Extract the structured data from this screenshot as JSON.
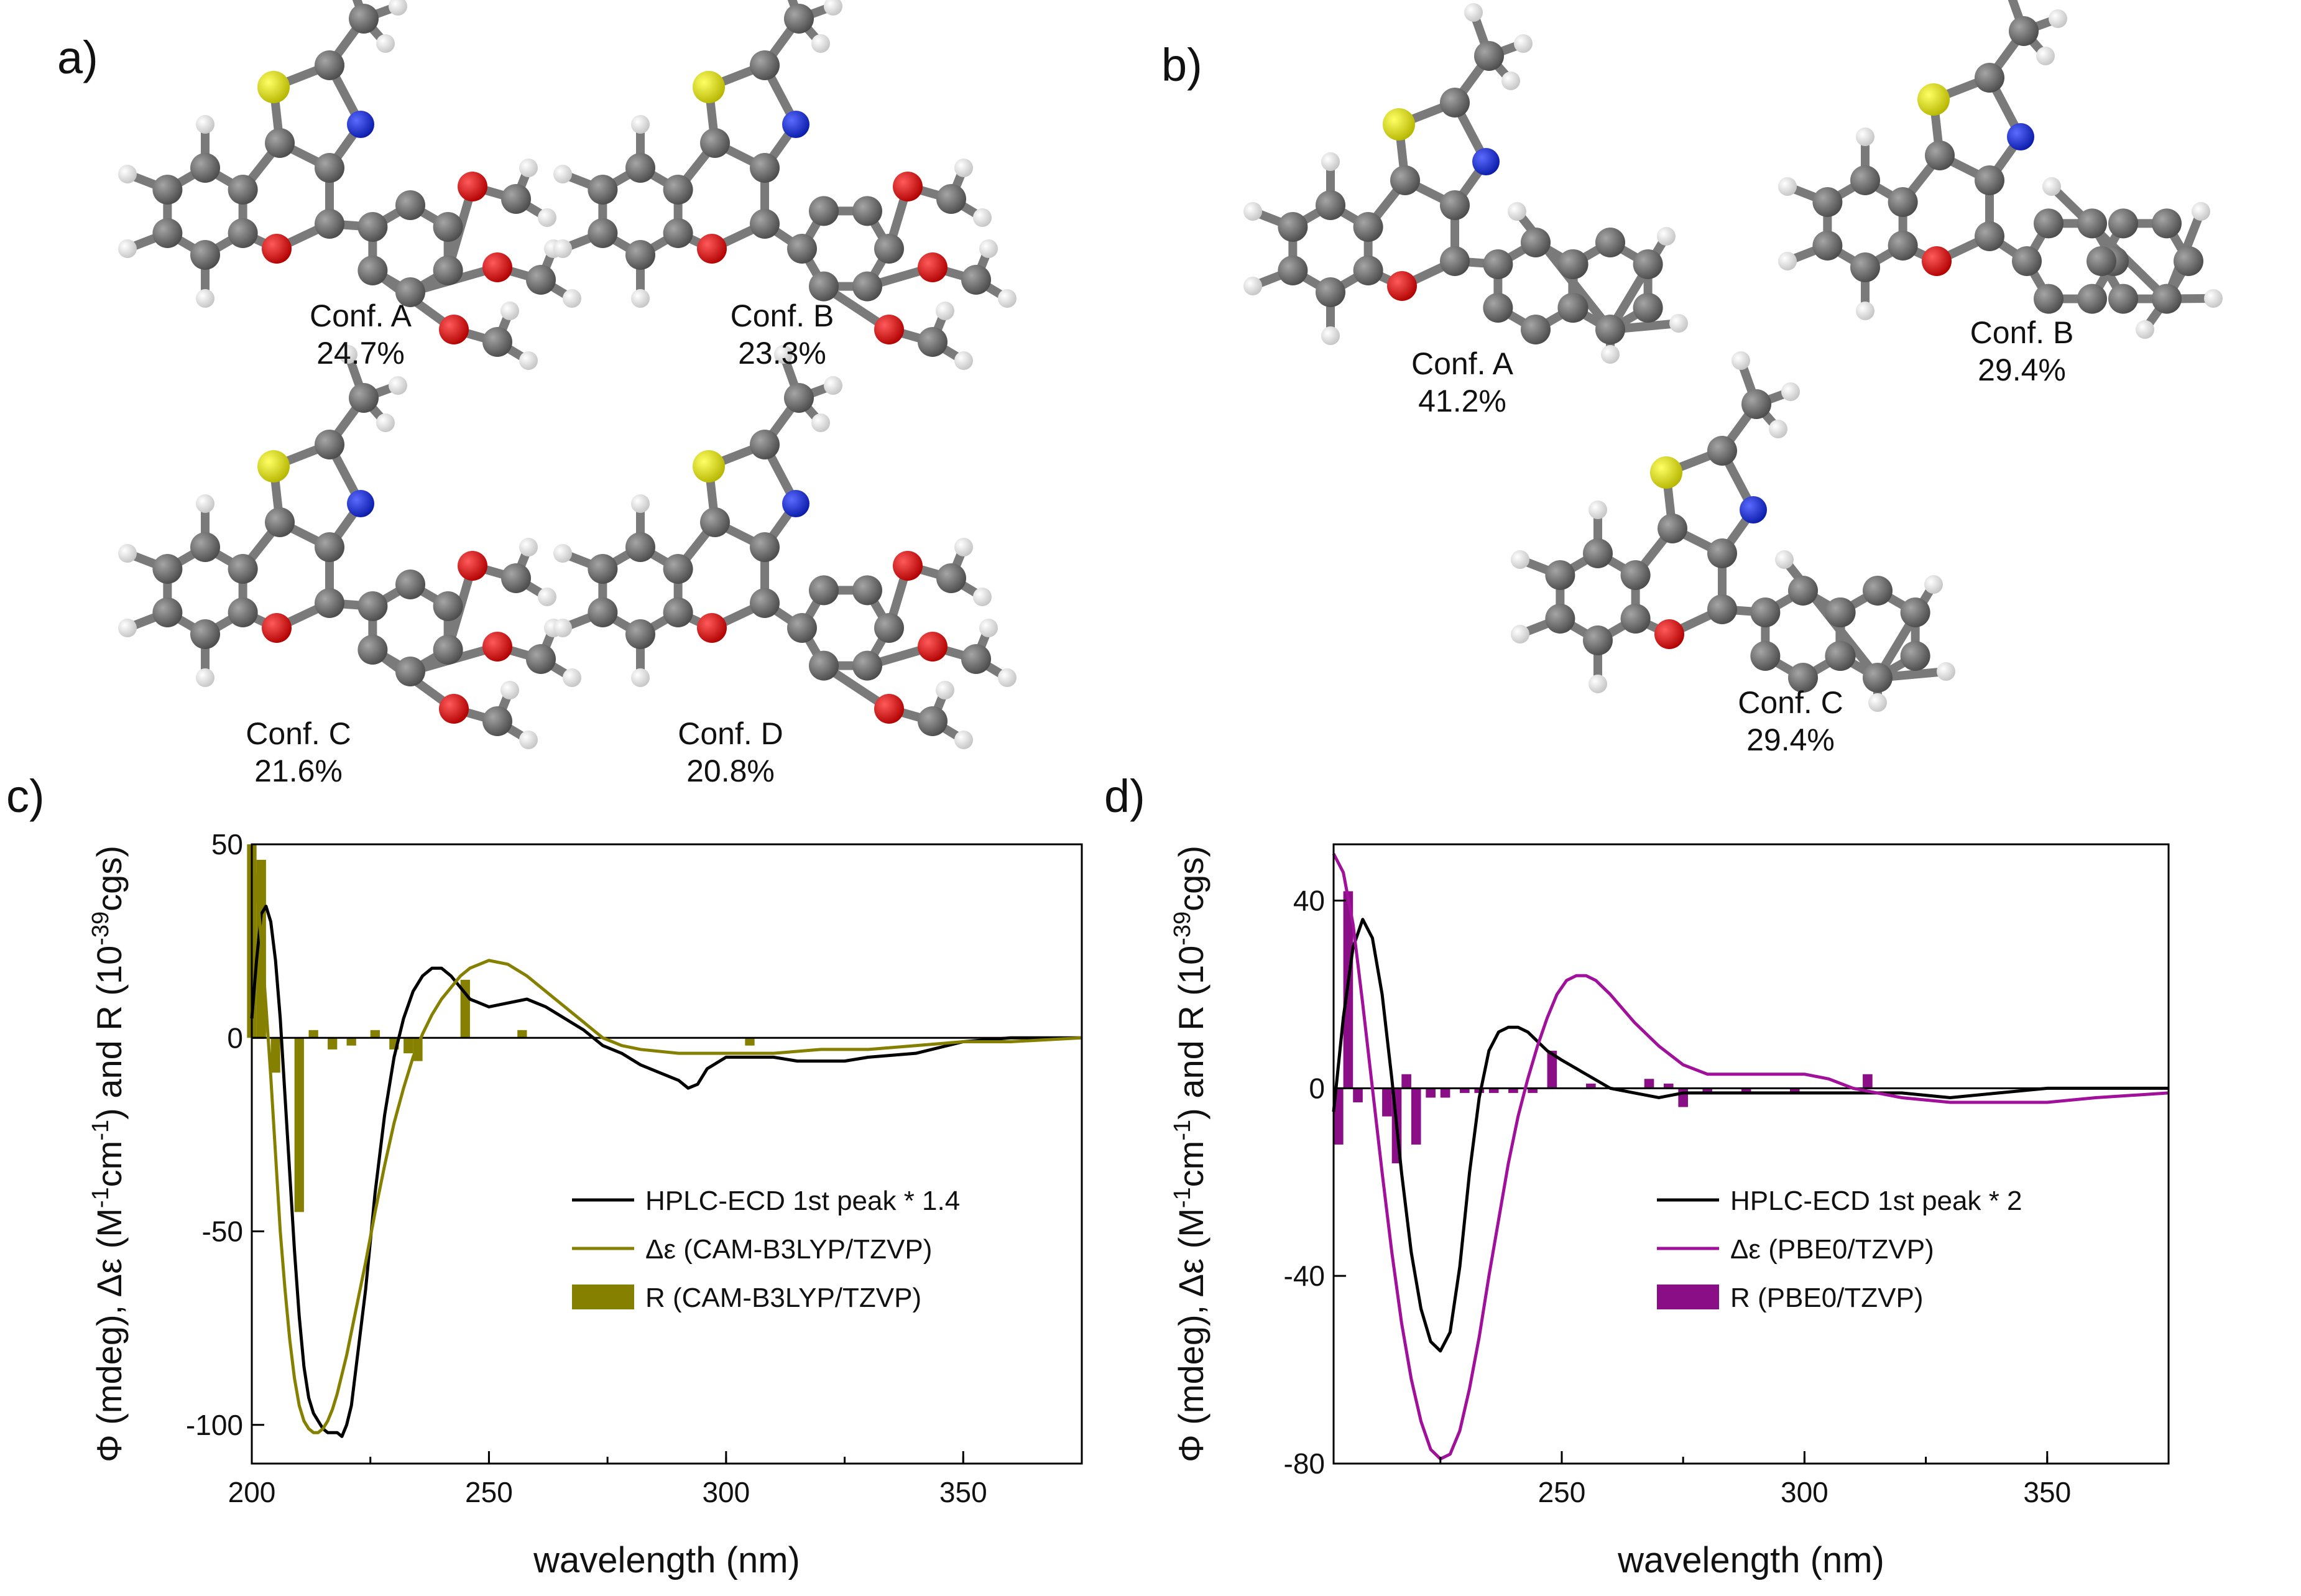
{
  "panels": {
    "a": "a)",
    "b": "b)",
    "c": "c)",
    "d": "d)"
  },
  "conformers_a": [
    {
      "name": "Conf. A",
      "pct": "24.7%"
    },
    {
      "name": "Conf. B",
      "pct": "23.3%"
    },
    {
      "name": "Conf. C",
      "pct": "21.6%"
    },
    {
      "name": "Conf. D",
      "pct": "20.8%"
    }
  ],
  "conformers_b": [
    {
      "name": "Conf. A",
      "pct": "41.2%"
    },
    {
      "name": "Conf. B",
      "pct": "29.4%"
    },
    {
      "name": "Conf. C",
      "pct": "29.4%"
    }
  ],
  "colors": {
    "carbon": "#5e5e5e",
    "hydrogen": "#eeeeee",
    "sulfur": "#d6d600",
    "nitrogen": "#1c2cd6",
    "oxygen": "#e01010",
    "olive": "#858000",
    "magenta": "#a0109a",
    "purple": "#8a0f87",
    "black": "#000000"
  },
  "chart_data": [
    {
      "id": "c",
      "type": "line",
      "xlabel": "wavelength (nm)",
      "ylabel_parts": [
        "Φ (mdeg), Δε (M",
        "-1",
        "cm",
        "-1",
        ") and R (10",
        "-39",
        "cgs)"
      ],
      "xlim": [
        200,
        375
      ],
      "ylim": [
        -110,
        50
      ],
      "xticks": [
        200,
        250,
        300,
        350
      ],
      "yticks": [
        50,
        0,
        -50,
        -100
      ],
      "legend": [
        "HPLC-ECD 1st peak * 1.4",
        "Δε (CAM-B3LYP/TZVP)",
        "R (CAM-B3LYP/TZVP)"
      ],
      "series": [
        {
          "name": "HPLC-ECD 1st peak * 1.4",
          "color": "#000000",
          "x": [
            200,
            201,
            202,
            203,
            204,
            205,
            206,
            207,
            208,
            209,
            210,
            211,
            212,
            213,
            214,
            215,
            216,
            217,
            218,
            219,
            220,
            221,
            222,
            224,
            226,
            228,
            230,
            232,
            234,
            236,
            238,
            240,
            242,
            244,
            246,
            248,
            250,
            254,
            258,
            262,
            266,
            270,
            274,
            278,
            282,
            286,
            290,
            292,
            294,
            296,
            300,
            305,
            310,
            315,
            320,
            325,
            330,
            340,
            350,
            360,
            375
          ],
          "y": [
            5,
            20,
            32,
            34,
            30,
            20,
            5,
            -15,
            -35,
            -55,
            -72,
            -85,
            -93,
            -97,
            -99,
            -101,
            -102,
            -102,
            -102,
            -103,
            -100,
            -95,
            -85,
            -65,
            -40,
            -20,
            -5,
            5,
            12,
            16,
            18,
            18,
            16,
            13,
            10,
            9,
            8,
            9,
            10,
            8,
            5,
            2,
            -2,
            -4,
            -7,
            -9,
            -11,
            -13,
            -12,
            -8,
            -5,
            -5,
            -5,
            -6,
            -6,
            -6,
            -5,
            -4,
            -1,
            0,
            0
          ]
        },
        {
          "name": "Δε (CAM-B3LYP/TZVP)",
          "color": "#858000",
          "x": [
            200,
            201,
            202,
            203,
            204,
            205,
            206,
            207,
            208,
            209,
            210,
            211,
            212,
            213,
            214,
            215,
            216,
            217,
            218,
            219,
            220,
            222,
            224,
            226,
            228,
            230,
            232,
            234,
            236,
            238,
            240,
            242,
            244,
            246,
            248,
            250,
            254,
            258,
            262,
            266,
            270,
            274,
            278,
            282,
            290,
            300,
            310,
            320,
            330,
            340,
            350,
            360,
            375
          ],
          "y": [
            48,
            40,
            25,
            8,
            -10,
            -30,
            -50,
            -65,
            -78,
            -88,
            -95,
            -99,
            -101,
            -102,
            -102,
            -101,
            -99,
            -96,
            -92,
            -87,
            -82,
            -70,
            -58,
            -45,
            -33,
            -22,
            -13,
            -5,
            1,
            6,
            10,
            13,
            16,
            18,
            19,
            20,
            19,
            16,
            12,
            8,
            4,
            0,
            -2,
            -3,
            -4,
            -4,
            -4,
            -3,
            -3,
            -2,
            -1,
            -1,
            0
          ]
        }
      ],
      "bars": {
        "name": "R (CAM-B3LYP/TZVP)",
        "color": "#858000",
        "x": [
          200,
          202,
          205,
          210,
          213,
          217,
          221,
          226,
          230,
          233,
          235,
          245,
          257,
          305
        ],
        "y": [
          50,
          46,
          -9,
          -45,
          2,
          -3,
          -2,
          2,
          -3,
          -4,
          -6,
          15,
          2,
          -2
        ]
      }
    },
    {
      "id": "d",
      "type": "line",
      "xlabel": "wavelength (nm)",
      "ylabel_parts": [
        "Φ (mdeg), Δε (M",
        "-1",
        "cm",
        "-1",
        ") and R (10",
        "-39",
        "cgs)"
      ],
      "xlim": [
        203,
        375
      ],
      "ylim": [
        -80,
        52
      ],
      "xticks": [
        250,
        300,
        350
      ],
      "yticks": [
        40,
        0,
        -40,
        -80
      ],
      "legend": [
        "HPLC-ECD 1st peak * 2",
        "Δε (PBE0/TZVP)",
        "R (PBE0/TZVP)"
      ],
      "series": [
        {
          "name": "HPLC-ECD 1st peak * 2",
          "color": "#000000",
          "x": [
            203,
            205,
            207,
            209,
            211,
            213,
            215,
            217,
            219,
            221,
            223,
            225,
            227,
            229,
            231,
            233,
            235,
            237,
            239,
            241,
            243,
            245,
            247,
            250,
            255,
            260,
            265,
            270,
            275,
            280,
            290,
            300,
            310,
            320,
            330,
            340,
            350,
            375
          ],
          "y": [
            -5,
            15,
            30,
            36,
            32,
            20,
            2,
            -18,
            -35,
            -47,
            -54,
            -56,
            -52,
            -38,
            -18,
            -2,
            8,
            12,
            13,
            13,
            12,
            10,
            8,
            6,
            3,
            0,
            -1,
            -2,
            -1,
            -1,
            -1,
            -1,
            -1,
            -1,
            -2,
            -1,
            0,
            0
          ]
        },
        {
          "name": "Δε (PBE0/TZVP)",
          "color": "#a0109a",
          "x": [
            203,
            205,
            207,
            209,
            211,
            213,
            215,
            217,
            219,
            221,
            223,
            225,
            227,
            229,
            231,
            233,
            235,
            237,
            239,
            241,
            243,
            245,
            247,
            249,
            251,
            253,
            255,
            257,
            260,
            265,
            270,
            275,
            280,
            290,
            300,
            305,
            310,
            315,
            320,
            330,
            340,
            350,
            360,
            375
          ],
          "y": [
            50,
            46,
            35,
            18,
            0,
            -18,
            -35,
            -50,
            -62,
            -71,
            -77,
            -79,
            -78,
            -73,
            -64,
            -53,
            -40,
            -28,
            -16,
            -6,
            2,
            9,
            15,
            20,
            23,
            24,
            24,
            23,
            20,
            14,
            9,
            5,
            3,
            3,
            3,
            2,
            0,
            -1,
            -2,
            -3,
            -3,
            -3,
            -2,
            -1
          ]
        }
      ],
      "bars": {
        "name": "R (PBE0/TZVP)",
        "color": "#8a0f87",
        "x": [
          204,
          206,
          208,
          214,
          216,
          218,
          220,
          223,
          226,
          230,
          233,
          236,
          240,
          244,
          248,
          256,
          268,
          272,
          275,
          280,
          288,
          298,
          313
        ],
        "y": [
          -12,
          42,
          -3,
          -6,
          -16,
          3,
          -12,
          -2,
          -2,
          -1,
          -1,
          -1,
          -1,
          -1,
          8,
          1,
          2,
          1,
          -4,
          -1,
          -1,
          -1,
          3
        ]
      }
    }
  ]
}
